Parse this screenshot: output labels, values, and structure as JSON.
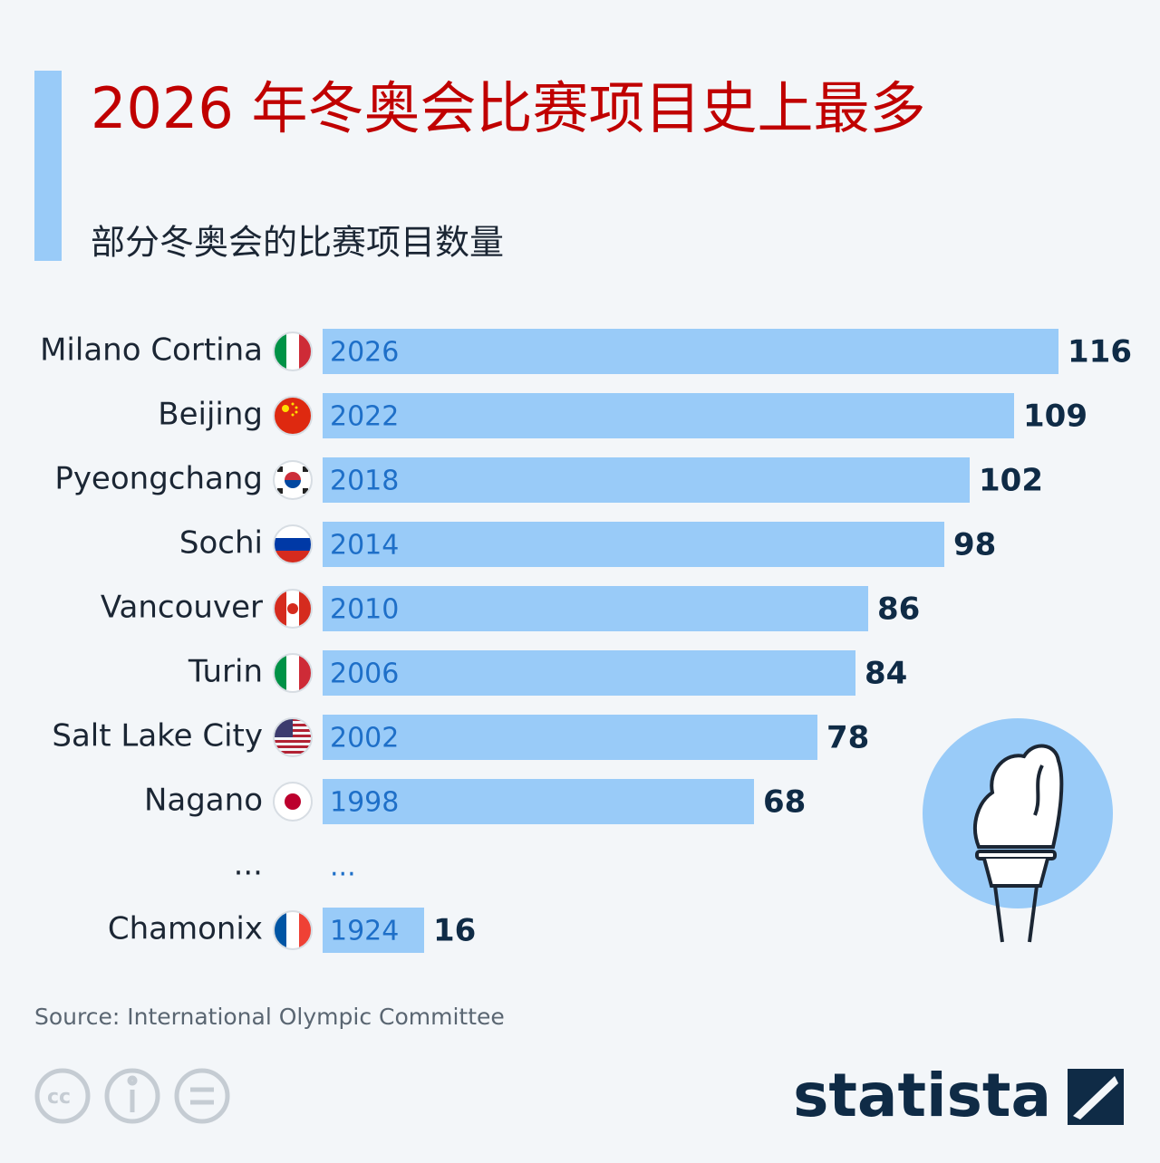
{
  "chart_data": {
    "type": "bar",
    "orientation": "horizontal",
    "title": "2026 年冬奥会比赛项目史上最多",
    "subtitle": "部分冬奥会的比赛项目数量",
    "categories": [
      "Milano Cortina",
      "Beijing",
      "Pyeongchang",
      "Sochi",
      "Vancouver",
      "Turin",
      "Salt Lake City",
      "Nagano",
      "...",
      "Chamonix"
    ],
    "years": [
      "2026",
      "2022",
      "2018",
      "2014",
      "2010",
      "2006",
      "2002",
      "1998",
      "...",
      "1924"
    ],
    "values": [
      116,
      109,
      102,
      98,
      86,
      84,
      78,
      68,
      null,
      16
    ],
    "color": "#99cbf8",
    "source": "Source: International Olympic Committee",
    "logo": "statista"
  }
}
